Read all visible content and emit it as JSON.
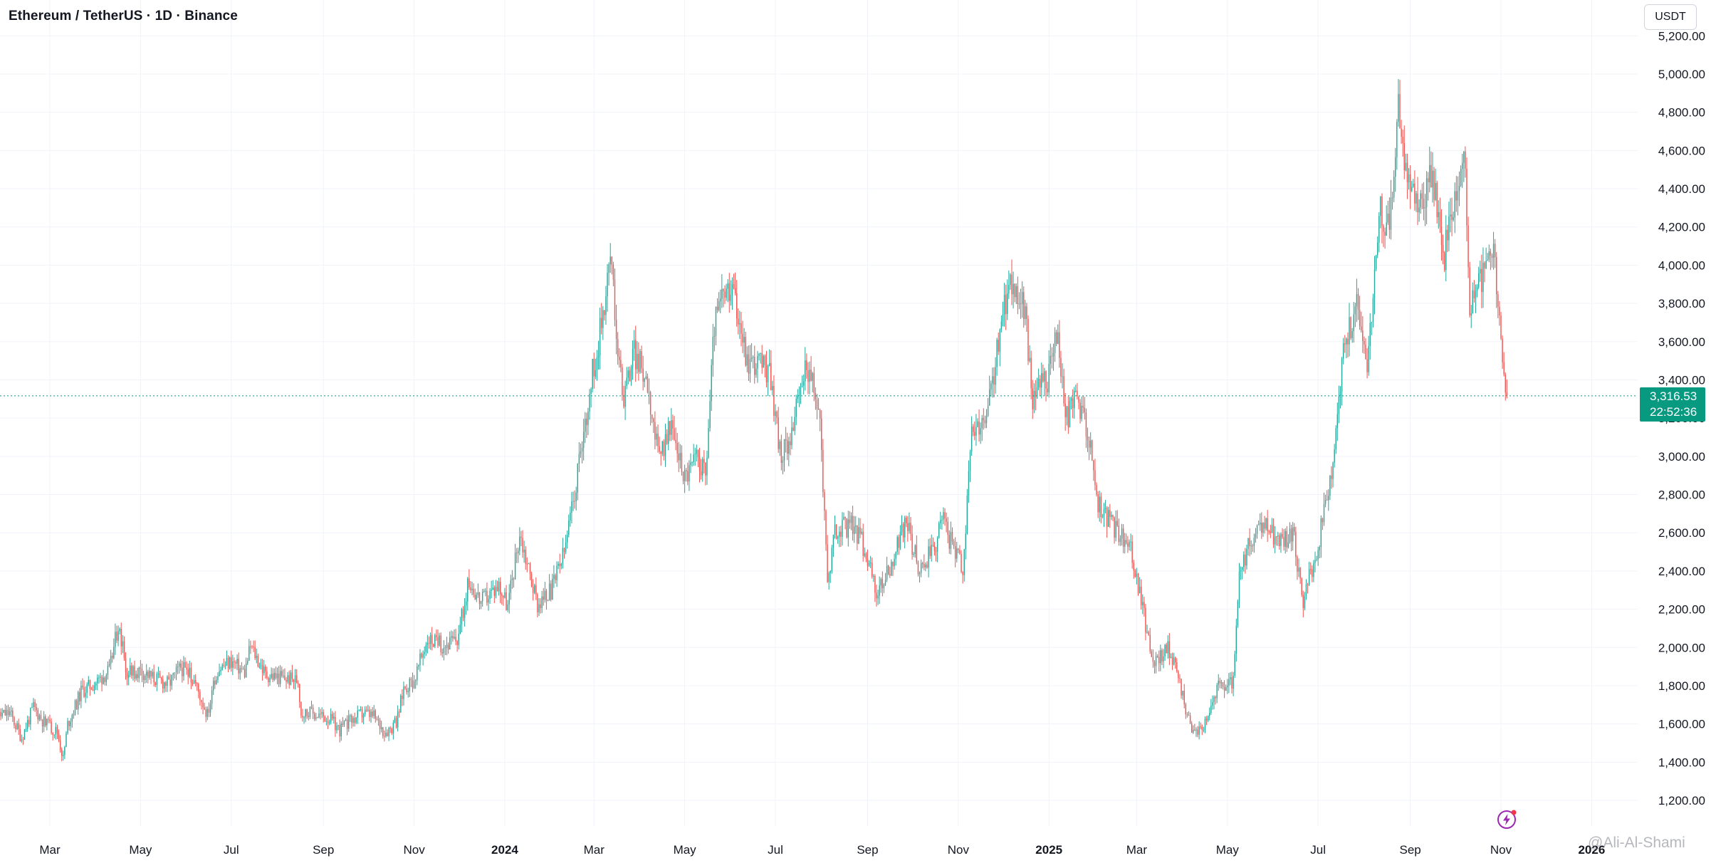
{
  "header": {
    "symbol": "Ethereum / TetherUS · 1D · Binance",
    "currency": "USDT"
  },
  "price_tag": {
    "price": "3,316.53",
    "countdown": "22:52:36"
  },
  "watermark": {
    "text": "@Ali-Al-Shami"
  },
  "icons": {
    "bolt": "lightning-icon"
  },
  "colors": {
    "up": "#26a69a",
    "down": "#ef5350",
    "price_tag": "#089981",
    "grid": "#f0f3fa"
  },
  "chart_data": {
    "type": "candlestick",
    "title": "Ethereum / TetherUS · 1D · Binance",
    "xlabel": "",
    "ylabel": "",
    "y_axis_position": "right",
    "ylim": [
      1100,
      5250
    ],
    "y_ticks": [
      1200,
      1400,
      1600,
      1800,
      2000,
      2200,
      2400,
      2600,
      2800,
      3000,
      3200,
      3400,
      3600,
      3800,
      4000,
      4200,
      4400,
      4600,
      4800,
      5000,
      5200
    ],
    "y_tick_labels": [
      "1,200.00",
      "1,400.00",
      "1,600.00",
      "1,800.00",
      "2,000.00",
      "2,200.00",
      "2,400.00",
      "2,600.00",
      "2,800.00",
      "3,000.00",
      "3,200.00",
      "3,400.00",
      "3,600.00",
      "3,800.00",
      "4,000.00",
      "4,200.00",
      "4,400.00",
      "4,600.00",
      "4,800.00",
      "5,000.00",
      "5,200.00"
    ],
    "x_range": [
      "2023-01-15",
      "2026-02-28"
    ],
    "x_ticks": [
      {
        "date": "2023-03-01",
        "label": "Mar"
      },
      {
        "date": "2023-05-01",
        "label": "May"
      },
      {
        "date": "2023-07-01",
        "label": "Jul"
      },
      {
        "date": "2023-09-01",
        "label": "Sep"
      },
      {
        "date": "2023-11-01",
        "label": "Nov"
      },
      {
        "date": "2024-01-01",
        "label": "2024"
      },
      {
        "date": "2024-03-01",
        "label": "Mar"
      },
      {
        "date": "2024-05-01",
        "label": "May"
      },
      {
        "date": "2024-07-01",
        "label": "Jul"
      },
      {
        "date": "2024-09-01",
        "label": "Sep"
      },
      {
        "date": "2024-11-01",
        "label": "Nov"
      },
      {
        "date": "2025-01-01",
        "label": "2025"
      },
      {
        "date": "2025-03-01",
        "label": "Mar"
      },
      {
        "date": "2025-05-01",
        "label": "May"
      },
      {
        "date": "2025-07-01",
        "label": "Jul"
      },
      {
        "date": "2025-09-01",
        "label": "Sep"
      },
      {
        "date": "2025-11-01",
        "label": "Nov"
      },
      {
        "date": "2026-01-01",
        "label": "2026"
      }
    ],
    "current_price": 3316.53,
    "grid": true,
    "series": [
      {
        "name": "ETHUSDT",
        "close_path": [
          [
            "2023-01-15",
            1580
          ],
          [
            "2023-01-24",
            1640
          ],
          [
            "2023-02-02",
            1660
          ],
          [
            "2023-02-10",
            1530
          ],
          [
            "2023-02-18",
            1690
          ],
          [
            "2023-02-26",
            1600
          ],
          [
            "2023-03-06",
            1560
          ],
          [
            "2023-03-10",
            1420
          ],
          [
            "2023-03-13",
            1600
          ],
          [
            "2023-03-22",
            1770
          ],
          [
            "2023-04-01",
            1820
          ],
          [
            "2023-04-10",
            1880
          ],
          [
            "2023-04-16",
            2120
          ],
          [
            "2023-04-22",
            1860
          ],
          [
            "2023-05-01",
            1880
          ],
          [
            "2023-05-10",
            1840
          ],
          [
            "2023-05-20",
            1810
          ],
          [
            "2023-05-28",
            1900
          ],
          [
            "2023-06-06",
            1830
          ],
          [
            "2023-06-15",
            1650
          ],
          [
            "2023-06-22",
            1890
          ],
          [
            "2023-07-01",
            1930
          ],
          [
            "2023-07-10",
            1870
          ],
          [
            "2023-07-14",
            2010
          ],
          [
            "2023-07-24",
            1860
          ],
          [
            "2023-08-05",
            1840
          ],
          [
            "2023-08-15",
            1830
          ],
          [
            "2023-08-17",
            1660
          ],
          [
            "2023-08-28",
            1650
          ],
          [
            "2023-09-05",
            1630
          ],
          [
            "2023-09-12",
            1570
          ],
          [
            "2023-09-20",
            1620
          ],
          [
            "2023-09-28",
            1660
          ],
          [
            "2023-10-05",
            1640
          ],
          [
            "2023-10-12",
            1560
          ],
          [
            "2023-10-20",
            1600
          ],
          [
            "2023-10-25",
            1790
          ],
          [
            "2023-11-01",
            1830
          ],
          [
            "2023-11-10",
            2050
          ],
          [
            "2023-11-20",
            2010
          ],
          [
            "2023-11-30",
            2040
          ],
          [
            "2023-12-08",
            2350
          ],
          [
            "2023-12-16",
            2240
          ],
          [
            "2023-12-28",
            2330
          ],
          [
            "2024-01-03",
            2220
          ],
          [
            "2024-01-11",
            2600
          ],
          [
            "2024-01-23",
            2230
          ],
          [
            "2024-02-01",
            2290
          ],
          [
            "2024-02-10",
            2500
          ],
          [
            "2024-02-20",
            2950
          ],
          [
            "2024-02-28",
            3400
          ],
          [
            "2024-03-04",
            3600
          ],
          [
            "2024-03-12",
            4050
          ],
          [
            "2024-03-20",
            3300
          ],
          [
            "2024-03-28",
            3550
          ],
          [
            "2024-04-06",
            3400
          ],
          [
            "2024-04-13",
            3000
          ],
          [
            "2024-04-22",
            3150
          ],
          [
            "2024-05-01",
            2900
          ],
          [
            "2024-05-10",
            3000
          ],
          [
            "2024-05-15",
            2900
          ],
          [
            "2024-05-21",
            3700
          ],
          [
            "2024-05-27",
            3850
          ],
          [
            "2024-06-05",
            3800
          ],
          [
            "2024-06-12",
            3500
          ],
          [
            "2024-06-20",
            3500
          ],
          [
            "2024-06-28",
            3400
          ],
          [
            "2024-07-05",
            2980
          ],
          [
            "2024-07-14",
            3200
          ],
          [
            "2024-07-22",
            3500
          ],
          [
            "2024-07-31",
            3200
          ],
          [
            "2024-08-05",
            2350
          ],
          [
            "2024-08-10",
            2600
          ],
          [
            "2024-08-22",
            2650
          ],
          [
            "2024-08-31",
            2500
          ],
          [
            "2024-09-07",
            2280
          ],
          [
            "2024-09-15",
            2400
          ],
          [
            "2024-09-27",
            2650
          ],
          [
            "2024-10-06",
            2400
          ],
          [
            "2024-10-14",
            2500
          ],
          [
            "2024-10-22",
            2650
          ],
          [
            "2024-11-04",
            2400
          ],
          [
            "2024-11-10",
            3100
          ],
          [
            "2024-11-20",
            3200
          ],
          [
            "2024-11-28",
            3600
          ],
          [
            "2024-12-06",
            3950
          ],
          [
            "2024-12-16",
            3750
          ],
          [
            "2024-12-21",
            3300
          ],
          [
            "2024-12-31",
            3400
          ],
          [
            "2025-01-06",
            3650
          ],
          [
            "2025-01-13",
            3200
          ],
          [
            "2025-01-20",
            3300
          ],
          [
            "2025-01-27",
            3150
          ],
          [
            "2025-02-03",
            2750
          ],
          [
            "2025-02-12",
            2650
          ],
          [
            "2025-02-25",
            2500
          ],
          [
            "2025-03-05",
            2200
          ],
          [
            "2025-03-12",
            1920
          ],
          [
            "2025-03-22",
            2000
          ],
          [
            "2025-03-29",
            1850
          ],
          [
            "2025-04-07",
            1540
          ],
          [
            "2025-04-15",
            1600
          ],
          [
            "2025-04-25",
            1800
          ],
          [
            "2025-05-05",
            1820
          ],
          [
            "2025-05-09",
            2350
          ],
          [
            "2025-05-16",
            2550
          ],
          [
            "2025-05-27",
            2650
          ],
          [
            "2025-06-05",
            2550
          ],
          [
            "2025-06-14",
            2600
          ],
          [
            "2025-06-21",
            2250
          ],
          [
            "2025-06-30",
            2500
          ],
          [
            "2025-07-10",
            2900
          ],
          [
            "2025-07-18",
            3550
          ],
          [
            "2025-07-27",
            3800
          ],
          [
            "2025-08-03",
            3500
          ],
          [
            "2025-08-12",
            4300
          ],
          [
            "2025-08-18",
            4200
          ],
          [
            "2025-08-24",
            4800
          ],
          [
            "2025-08-31",
            4400
          ],
          [
            "2025-09-07",
            4300
          ],
          [
            "2025-09-15",
            4500
          ],
          [
            "2025-09-24",
            4050
          ],
          [
            "2025-10-02",
            4400
          ],
          [
            "2025-10-07",
            4650
          ],
          [
            "2025-10-11",
            3800
          ],
          [
            "2025-10-18",
            3900
          ],
          [
            "2025-10-27",
            4100
          ],
          [
            "2025-11-04",
            3300
          ],
          [
            "2025-11-05",
            3316.53
          ]
        ]
      }
    ]
  }
}
